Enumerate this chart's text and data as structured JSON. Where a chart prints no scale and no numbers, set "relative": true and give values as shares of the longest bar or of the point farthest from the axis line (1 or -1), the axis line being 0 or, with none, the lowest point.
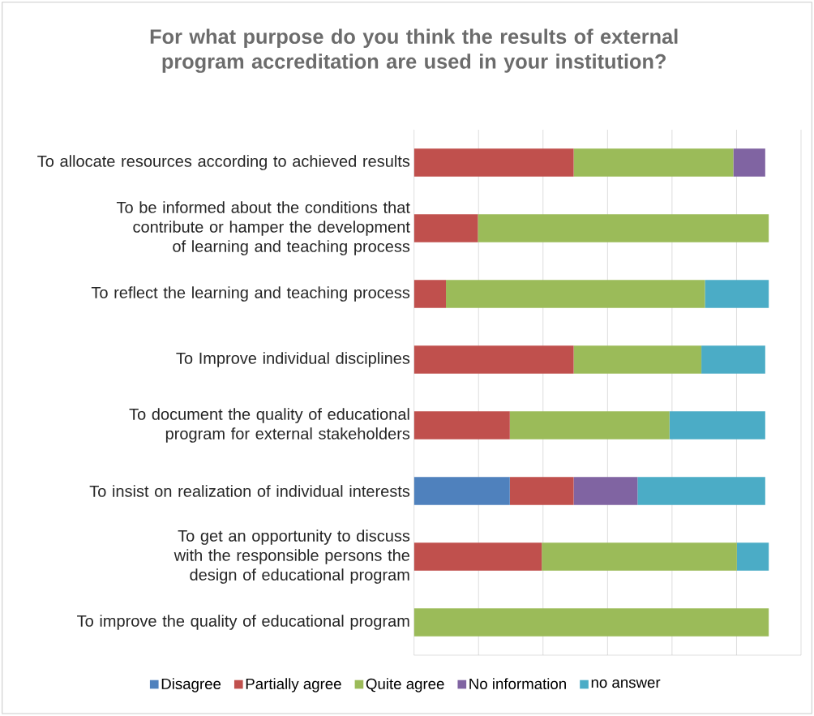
{
  "chart_data": {
    "type": "bar",
    "orientation": "horizontal",
    "stacked": true,
    "relative": true,
    "grid": "x",
    "legend": "bottom",
    "title": "For what purpose do you think the results of external program accreditation are used in your institution?",
    "categories": [
      "To allocate resources according to achieved results",
      "To be informed about the conditions that contribute or hamper the development of learning and teaching process",
      "To reflect the learning and teaching process",
      "To Improve individual disciplines",
      "To document the quality of educational program for external stakeholders",
      "To insist on realization of individual interests",
      "To get an opportunity to discuss with the responsible persons the design of educational program",
      "To improve the quality of educational program"
    ],
    "series": [
      {
        "name": "Disagree",
        "color": "#4f81bd",
        "values": [
          null,
          null,
          null,
          null,
          null,
          0.27,
          null,
          null
        ]
      },
      {
        "name": "Partially agree",
        "color": "#c0504d",
        "values": [
          0.45,
          0.18,
          0.09,
          0.45,
          0.27,
          0.18,
          0.36,
          null
        ]
      },
      {
        "name": "Quite agree",
        "color": "#9bbb59",
        "values": [
          0.45,
          0.82,
          0.73,
          0.36,
          0.45,
          null,
          0.55,
          1
        ]
      },
      {
        "name": "No information",
        "color": "#8064a2",
        "values": [
          0.09,
          null,
          null,
          null,
          null,
          0.18,
          null,
          null
        ]
      },
      {
        "name": "no answer",
        "color": "#4bacc6",
        "values": [
          null,
          null,
          0.18,
          0.18,
          0.27,
          0.36,
          0.09,
          null
        ]
      }
    ]
  }
}
